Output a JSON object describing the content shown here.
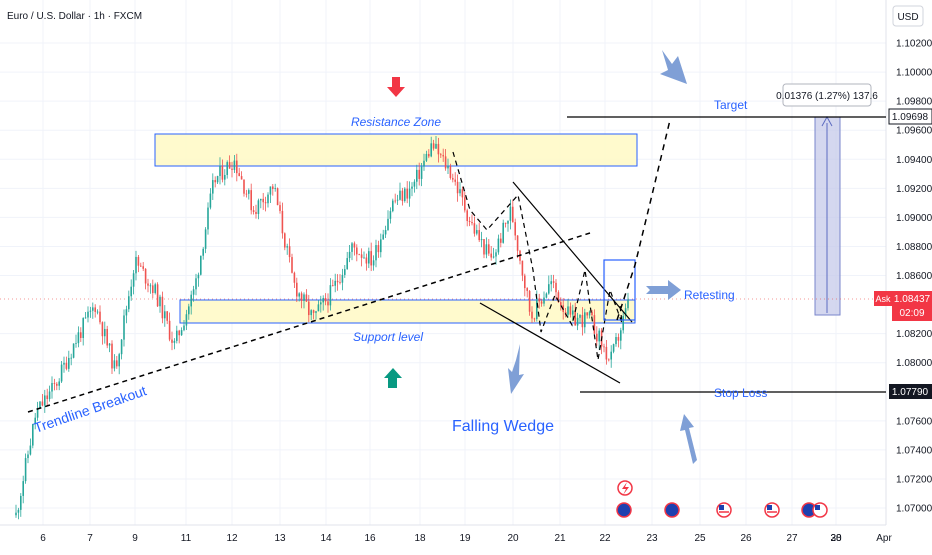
{
  "header": {
    "symbol_title": "Euro / U.S. Dollar · 1h · FXCM"
  },
  "price_axis": {
    "currency": "USD",
    "ticks": [
      "1.10200",
      "1.10000",
      "1.09800",
      "1.09600",
      "1.09400",
      "1.09200",
      "1.09000",
      "1.08800",
      "1.08600",
      "1.08200",
      "1.08000",
      "1.07600",
      "1.07400",
      "1.07200",
      "1.07000"
    ]
  },
  "time_axis": {
    "ticks": [
      "6",
      "7",
      "9",
      "11",
      "12",
      "13",
      "14",
      "16",
      "18",
      "19",
      "20",
      "21",
      "22",
      "23",
      "25",
      "26",
      "27",
      "28",
      "30",
      "Apr"
    ]
  },
  "price_labels": {
    "target": "1.09698",
    "ask_label": "Ask",
    "ask_price": "1.08437",
    "countdown": "02:09",
    "stop": "1.07790"
  },
  "measure_tool": {
    "label": "0.01376 (1.27%) 137.6"
  },
  "annotations": {
    "resistance": "Resistance Zone",
    "support": "Support level",
    "target": "Target",
    "retesting": "Retesting",
    "stop_loss": "Stop Loss",
    "trendline": "Trendline Breakout",
    "falling_wedge": "Falling Wedge"
  },
  "colors": {
    "bull": "#26a69a",
    "bear": "#ef5350",
    "annotation": "#2962ff",
    "zone_fill": "#fff9c4",
    "measure_fill": "#c5cae9",
    "arrow": "#7f9fd6",
    "axis_text": "#131722"
  },
  "chart_data": {
    "type": "candlestick",
    "title": "Euro / U.S. Dollar · 1h · FXCM",
    "ylim": [
      1.069,
      1.1035
    ],
    "y_scale": "linear",
    "grid": true,
    "resistance_zone": [
      1.0935,
      1.0955
    ],
    "support_zone": [
      1.0825,
      1.084
    ],
    "target_price": 1.09698,
    "stop_loss_price": 1.0779,
    "current_price": 1.08437,
    "close_path": [
      [
        "Mar 5",
        1.0695
      ],
      [
        "Mar 5 late",
        1.0765
      ],
      [
        "Mar 6",
        1.0785
      ],
      [
        "Mar 6 late",
        1.0815
      ],
      [
        "Mar 7",
        1.084
      ],
      [
        "Mar 7 late",
        1.0795
      ],
      [
        "Mar 9",
        1.087
      ],
      [
        "Mar 10",
        1.085
      ],
      [
        "Mar 10 late",
        1.0812
      ],
      [
        "Mar 11",
        1.085
      ],
      [
        "Mar 11 late",
        1.0925
      ],
      [
        "Mar 12",
        1.094
      ],
      [
        "Mar 12 late",
        1.0905
      ],
      [
        "Mar 13",
        1.0922
      ],
      [
        "Mar 13 late",
        1.0855
      ],
      [
        "Mar 14",
        1.083
      ],
      [
        "Mar 15",
        1.085
      ],
      [
        "Mar 16",
        1.088
      ],
      [
        "Mar 17",
        1.087
      ],
      [
        "Mar 17 late",
        1.091
      ],
      [
        "Mar 18",
        1.092
      ],
      [
        "Mar 18 late",
        1.095
      ],
      [
        "Mar 19",
        1.093
      ],
      [
        "Mar 19 late",
        1.0895
      ],
      [
        "Mar 20",
        1.087
      ],
      [
        "Mar 20 late",
        1.0905
      ],
      [
        "Mar 21",
        1.0832
      ],
      [
        "Mar 21 late",
        1.0855
      ],
      [
        "Mar 22",
        1.083
      ],
      [
        "Mar 22 late",
        1.083
      ],
      [
        "Mar 23",
        1.08
      ],
      [
        "Mar 23 late",
        1.0844
      ]
    ]
  }
}
